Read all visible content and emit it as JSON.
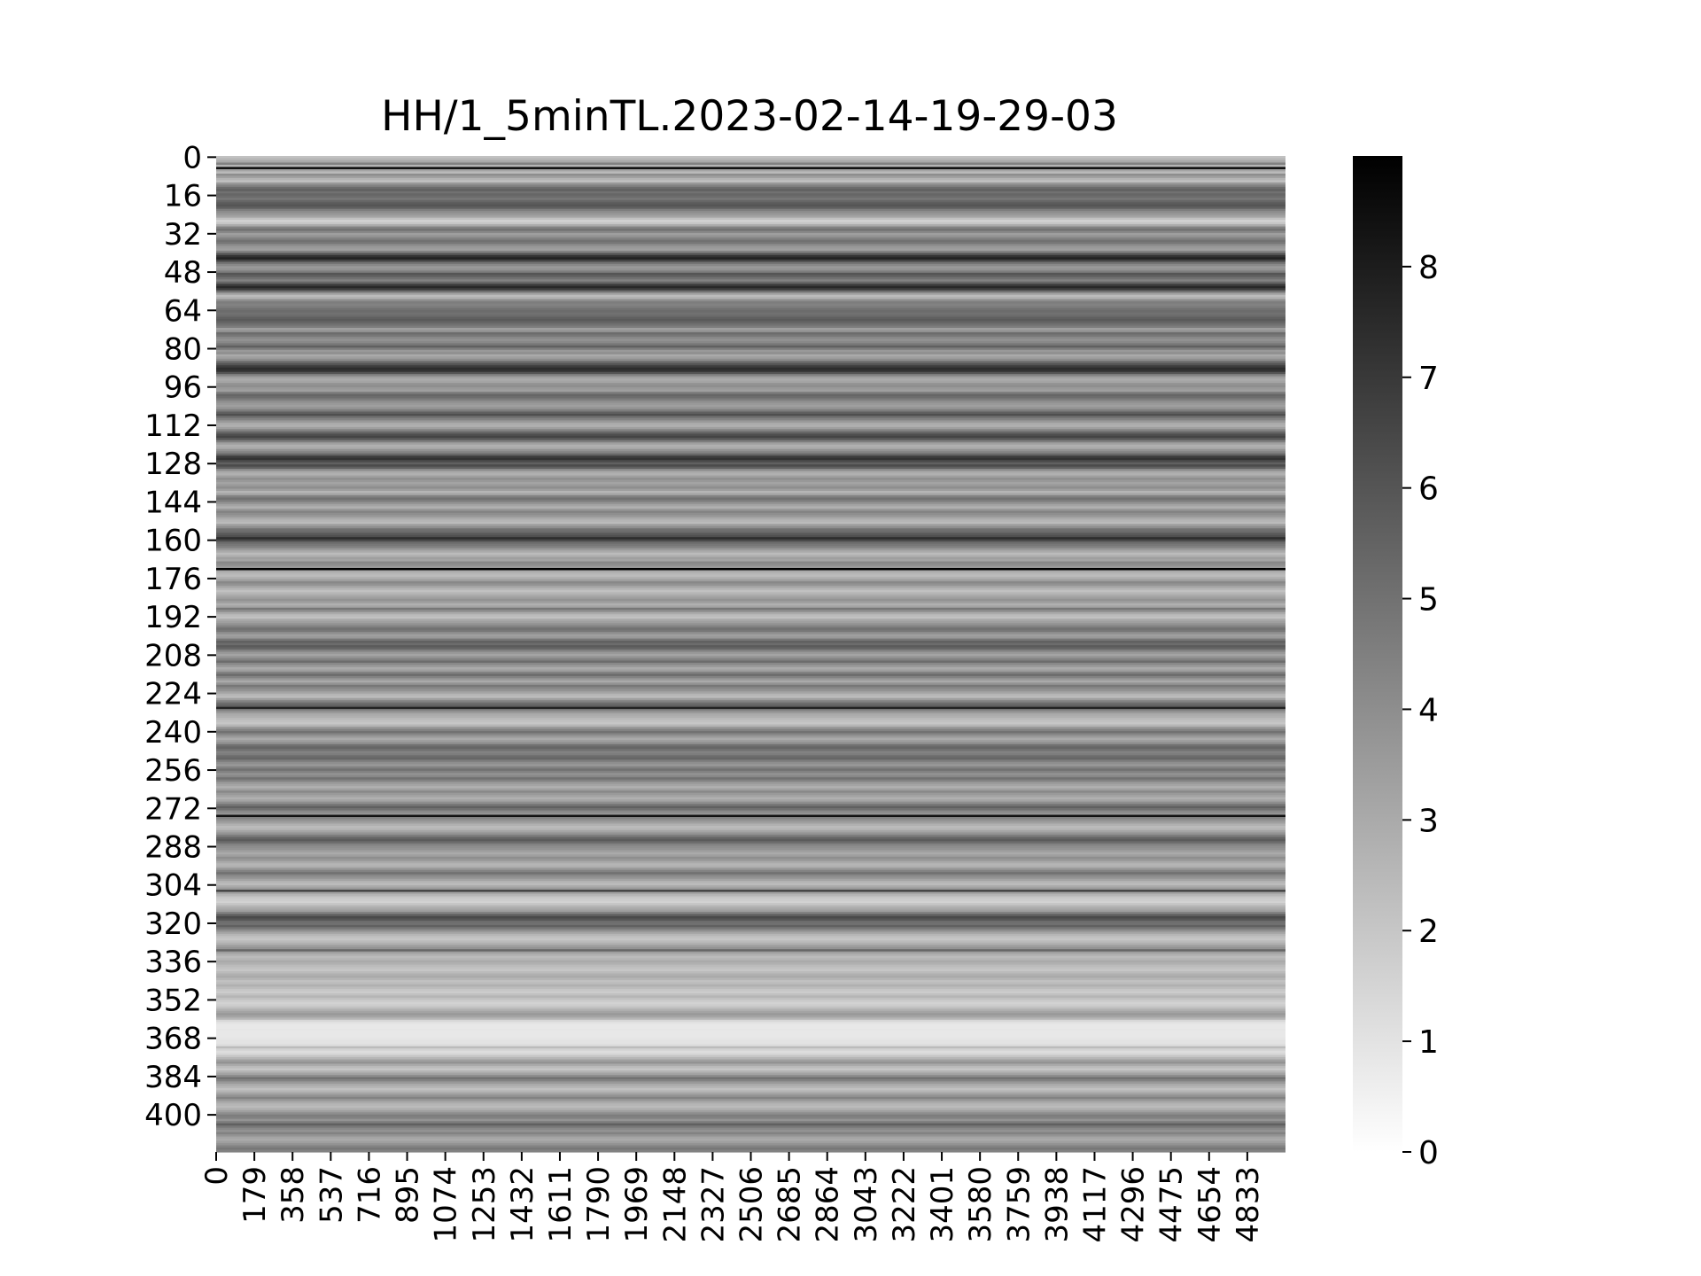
{
  "chart_data": {
    "type": "heatmap",
    "title": "HH/1_5minTL.2023-02-14-19-29-03",
    "xlabel": "",
    "ylabel": "",
    "x_tick_labels": [
      "0",
      "179",
      "358",
      "537",
      "716",
      "895",
      "1074",
      "1253",
      "1432",
      "1611",
      "1790",
      "1969",
      "2148",
      "2327",
      "2506",
      "2685",
      "2864",
      "3043",
      "3222",
      "3401",
      "3580",
      "3759",
      "3938",
      "4117",
      "4296",
      "4475",
      "4654",
      "4833"
    ],
    "y_tick_labels": [
      "0",
      "16",
      "32",
      "48",
      "64",
      "80",
      "96",
      "112",
      "128",
      "144",
      "160",
      "176",
      "192",
      "208",
      "224",
      "240",
      "256",
      "272",
      "288",
      "304",
      "320",
      "336",
      "352",
      "368",
      "384",
      "400"
    ],
    "xlim": [
      0,
      5012
    ],
    "ylim": [
      0,
      416
    ],
    "colormap": "Greys",
    "colorbar": {
      "vmin": 0,
      "vmax": 9,
      "tick_labels": [
        "0",
        "1",
        "2",
        "3",
        "4",
        "5",
        "6",
        "7",
        "8"
      ]
    },
    "row_values": [
      2.2,
      2.6,
      3.0,
      4.4,
      2.6,
      8.6,
      3.2,
      2.4,
      4.0,
      3.4,
      2.6,
      2.2,
      3.6,
      4.4,
      5.2,
      5.6,
      5.0,
      5.4,
      5.2,
      4.8,
      5.4,
      5.8,
      6.0,
      5.6,
      4.6,
      4.0,
      3.6,
      3.2,
      2.2,
      1.6,
      2.0,
      3.0,
      4.4,
      5.0,
      4.2,
      3.4,
      3.8,
      4.4,
      5.0,
      4.8,
      4.0,
      3.6,
      3.4,
      4.4,
      6.0,
      7.2,
      7.8,
      6.6,
      5.0,
      4.2,
      3.6,
      3.8,
      4.6,
      6.0,
      5.6,
      5.0,
      4.4,
      5.4,
      6.8,
      7.6,
      6.8,
      5.0,
      3.4,
      2.4,
      2.8,
      4.0,
      4.6,
      4.4,
      4.6,
      5.0,
      5.2,
      5.0,
      5.2,
      5.6,
      5.8,
      5.4,
      5.0,
      4.6,
      3.4,
      3.8,
      5.2,
      4.8,
      4.2,
      3.8,
      4.2,
      4.8,
      5.6,
      4.6,
      3.6,
      4.0,
      3.0,
      3.4,
      4.0,
      5.2,
      6.0,
      6.8,
      7.4,
      7.2,
      6.0,
      4.4,
      3.4,
      3.0,
      3.2,
      3.8,
      4.0,
      3.6,
      3.4,
      4.6,
      5.4,
      5.2,
      4.6,
      4.0,
      3.6,
      3.4,
      3.8,
      4.6,
      5.6,
      6.2,
      5.0,
      4.4,
      3.6,
      3.0,
      2.8,
      3.4,
      4.4,
      5.4,
      6.2,
      6.6,
      5.8,
      4.6,
      3.4,
      2.8,
      3.0,
      3.8,
      4.4,
      5.4,
      6.8,
      7.2,
      6.4,
      5.6,
      6.4,
      5.6,
      4.0,
      3.0,
      2.8,
      3.4,
      4.0,
      3.6,
      3.2,
      3.6,
      4.0,
      3.4,
      2.6,
      3.2,
      4.4,
      5.0,
      4.6,
      3.8,
      3.2,
      2.8,
      3.6,
      4.4,
      4.0,
      3.6,
      3.0,
      2.6,
      2.4,
      3.4,
      4.0,
      5.0,
      5.2,
      5.8,
      6.2,
      7.4,
      6.4,
      5.2,
      4.8,
      4.4,
      3.6,
      3.0,
      2.4,
      2.8,
      3.4,
      3.2,
      4.2,
      4.0,
      3.6,
      9.0,
      3.0,
      2.6,
      2.4,
      2.8,
      3.4,
      4.2,
      3.8,
      3.2,
      2.6,
      2.2,
      2.6,
      3.0,
      3.4,
      3.8,
      3.4,
      2.8,
      3.2,
      4.8,
      4.0,
      3.0,
      2.4,
      2.2,
      3.0,
      3.4,
      3.8,
      4.4,
      5.0,
      4.8,
      4.0,
      3.4,
      3.6,
      4.8,
      5.6,
      5.2,
      5.8,
      5.4,
      4.4,
      3.6,
      3.2,
      3.8,
      4.4,
      5.2,
      4.2,
      3.6,
      3.0,
      3.4,
      4.4,
      5.2,
      4.4,
      3.6,
      3.0,
      3.8,
      4.8,
      4.2,
      3.8,
      3.2,
      2.6,
      2.4,
      3.4,
      4.4,
      5.2,
      5.6,
      7.8,
      4.4,
      3.6,
      3.0,
      2.8,
      2.4,
      2.2,
      2.0,
      2.6,
      3.6,
      4.4,
      5.0,
      4.2,
      3.6,
      3.0,
      3.4,
      4.0,
      5.0,
      5.4,
      5.0,
      4.4,
      4.6,
      5.2,
      5.4,
      4.6,
      4.0,
      3.6,
      4.4,
      5.0,
      4.4,
      3.8,
      4.2,
      5.0,
      4.4,
      3.6,
      3.2,
      2.8,
      3.4,
      4.2,
      3.6,
      3.2,
      2.8,
      3.2,
      4.0,
      4.8,
      5.6,
      5.0,
      4.2,
      3.8,
      8.4,
      4.4,
      3.8,
      3.4,
      2.8,
      2.4,
      2.6,
      3.2,
      3.8,
      4.6,
      5.4,
      5.8,
      5.2,
      4.4,
      4.0,
      3.8,
      3.4,
      3.0,
      3.4,
      4.0,
      3.6,
      3.0,
      2.6,
      2.8,
      3.6,
      4.4,
      5.0,
      4.2,
      3.8,
      3.2,
      2.6,
      2.4,
      3.0,
      3.6,
      6.6,
      3.2,
      2.6,
      2.0,
      1.8,
      1.6,
      2.0,
      2.6,
      3.0,
      3.4,
      4.4,
      5.6,
      6.4,
      6.0,
      5.2,
      5.0,
      5.6,
      4.8,
      4.0,
      3.2,
      2.6,
      2.2,
      2.0,
      2.4,
      2.8,
      3.4,
      3.8,
      5.4,
      3.4,
      2.8,
      2.4,
      2.6,
      3.0,
      2.8,
      2.4,
      2.2,
      2.0,
      2.4,
      2.8,
      3.0,
      2.6,
      2.2,
      2.4,
      2.8,
      2.4,
      2.0,
      1.8,
      2.2,
      2.6,
      2.2,
      1.8,
      1.6,
      1.8,
      2.2,
      2.8,
      3.2,
      3.6,
      3.2,
      2.6,
      1.4,
      1.0,
      0.8,
      0.8,
      0.9,
      0.8,
      0.8,
      0.8,
      0.9,
      1.0,
      1.0,
      1.2,
      2.4,
      1.6,
      1.2,
      1.4,
      2.0,
      2.6,
      3.4,
      3.8,
      3.0,
      2.4,
      2.0,
      2.6,
      3.2,
      4.0,
      5.0,
      4.4,
      3.6,
      3.0,
      2.6,
      2.2,
      2.6,
      3.2,
      3.8,
      4.4,
      3.6,
      3.0,
      2.6,
      2.4,
      2.8,
      3.4,
      4.0,
      4.6,
      4.4,
      3.8,
      4.6,
      5.6,
      4.8,
      4.2,
      3.8,
      4.4,
      3.8,
      3.2,
      3.0,
      3.4,
      3.8,
      4.4,
      4.8,
      4.4
    ]
  }
}
